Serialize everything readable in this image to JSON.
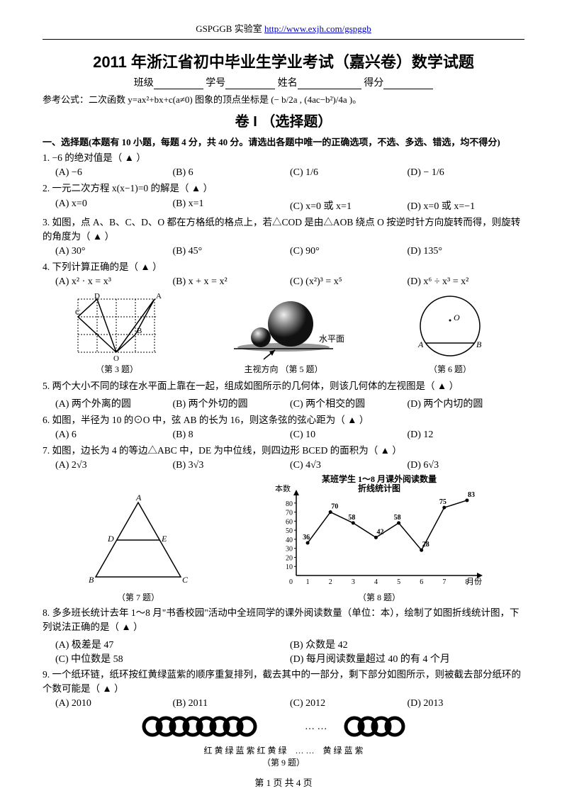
{
  "header": {
    "lab": "GSPGGB 实验室",
    "url": "http://www.exjh.com/gspggb"
  },
  "title": "2011 年浙江省初中毕业生学业考试（嘉兴卷）数学试题",
  "info": {
    "class": "班级",
    "id": "学号",
    "name": "姓名",
    "score": "得分"
  },
  "formula": "参考公式：二次函数 y=ax²+bx+c(a≠0) 图象的顶点坐标是 (− b/2a , (4ac−b²)/4a )。",
  "section": "卷 I （选择题）",
  "instruction": "一、选择题(本题有 10 小题，每题 4 分，共 40 分。请选出各题中唯一的正确选项，不选、多选、错选，均不得分)",
  "q1": {
    "text": "1. −6 的绝对值是（  ▲  ）",
    "A": "(A) −6",
    "B": "(B) 6",
    "C": "(C) 1/6",
    "D": "(D) − 1/6"
  },
  "q2": {
    "text": "2. 一元二次方程 x(x−1)=0 的解是（  ▲  ）",
    "A": "(A) x=0",
    "B": "(B) x=1",
    "C": "(C) x=0 或 x=1",
    "D": "(D) x=0 或 x=−1"
  },
  "q3": {
    "text": "3. 如图，点 A、B、C、D、O 都在方格纸的格点上，若△COD 是由△AOB 绕点 O 按逆时针方向旋转而得，则旋转的角度为（  ▲  ）",
    "A": "(A) 30°",
    "B": "(B) 45°",
    "C": "(C) 90°",
    "D": "(D) 135°"
  },
  "q4": {
    "text": "4. 下列计算正确的是（  ▲  ）",
    "A": "(A) x² · x = x³",
    "B": "(B) x + x = x²",
    "C": "(C) (x²)³ = x⁵",
    "D": "(D) x⁶ ÷ x³ = x²"
  },
  "fig3cap": "（第 3 题）",
  "fig5cap": "（第 5 题）",
  "fig5label1": "主视方向",
  "fig5label2": "水平面",
  "fig6cap": "（第 6 题）",
  "q5": {
    "text": "5. 两个大小不同的球在水平面上靠在一起，组成如图所示的几何体，则该几何体的左视图是（  ▲  ）",
    "A": "(A) 两个外离的圆",
    "B": "(B) 两个外切的圆",
    "C": "(C) 两个相交的圆",
    "D": "(D) 两个内切的圆"
  },
  "q6": {
    "text": "6. 如图，半径为 10 的⊙O 中，弦 AB 的长为 16，则这条弦的弦心距为（  ▲  ）",
    "A": "(A) 6",
    "B": "(B) 8",
    "C": "(C) 10",
    "D": "(D) 12"
  },
  "q7": {
    "text": "7. 如图，边长为 4 的等边△ABC 中，DE 为中位线，则四边形 BCED 的面积为（  ▲  ）",
    "A": "(A) 2√3",
    "B": "(B) 3√3",
    "C": "(C) 4√3",
    "D": "(D) 6√3"
  },
  "fig7cap": "（第 7 题）",
  "chart": {
    "title": "某班学生 1～8 月课外阅读数量",
    "subtitle": "折线统计图",
    "cap": "（第 8 题）",
    "ylab": "本数",
    "xlab": "月份",
    "months": [
      "1",
      "2",
      "3",
      "4",
      "5",
      "6",
      "7",
      "8"
    ],
    "values": [
      36,
      70,
      58,
      42,
      58,
      28,
      75,
      83
    ],
    "ylim": [
      0,
      90
    ],
    "ytick": 10,
    "line_color": "#000",
    "grid_color": "#000",
    "bg": "#ffffff"
  },
  "q8": {
    "text": "8. 多多班长统计去年 1～8 月\"书香校园\"活动中全班同学的课外阅读数量（单位：本），绘制了如图折线统计图，下列说法正确的是（  ▲  ）",
    "A": "(A) 极差是 47",
    "B": "(B) 众数是 42",
    "C": "(C) 中位数是 58",
    "D": "(D) 每月阅读数量超过 40 的有 4 个月"
  },
  "q9": {
    "text": "9. 一个纸环链，纸环按红黄绿蓝紫的顺序重复排列，截去其中的一部分，剩下部分如图所示，则被截去部分纸环的个数可能是（  ▲  ）",
    "A": "(A) 2010",
    "B": "(B) 2011",
    "C": "(C) 2012",
    "D": "(D) 2013"
  },
  "fig9": {
    "cap": "（第 9 题）",
    "left": "红 黄 绿 蓝 紫 红 黄 绿",
    "right": "黄 绿 蓝 紫",
    "dots": "…  …"
  },
  "footer": "第 1 页   共 4 页"
}
